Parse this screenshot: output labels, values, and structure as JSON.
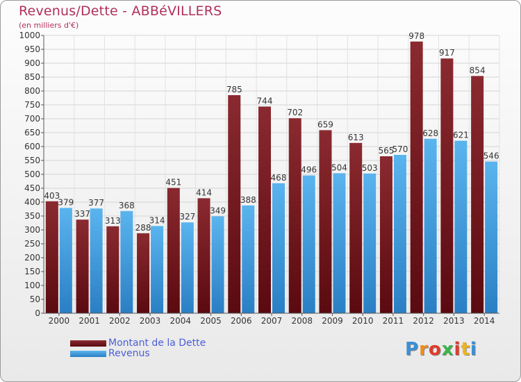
{
  "title": "Revenus/Dette - ABBéVILLERS",
  "subtitle": "(en milliers d'€)",
  "legend": {
    "items": [
      {
        "label": "Montant de la Dette",
        "color": "#7a1c22"
      },
      {
        "label": "Revenus",
        "color": "#3a9de0"
      }
    ]
  },
  "logo": {
    "text": "Proxiti"
  },
  "chart_data": {
    "type": "bar",
    "title": "Revenus/Dette - ABBéVILLERS",
    "ylabel": "(en milliers d'€)",
    "xlabel": "",
    "ylim": [
      0,
      1000
    ],
    "ytick_step": 50,
    "grid": true,
    "legend_position": "bottom-left",
    "categories": [
      "2000",
      "2001",
      "2002",
      "2003",
      "2004",
      "2005",
      "2006",
      "2007",
      "2008",
      "2009",
      "2010",
      "2011",
      "2012",
      "2013",
      "2014"
    ],
    "series": [
      {
        "name": "Montant de la Dette",
        "color": "#7a1c22",
        "values": [
          403,
          337,
          313,
          288,
          451,
          414,
          785,
          744,
          702,
          659,
          613,
          565,
          978,
          917,
          854
        ]
      },
      {
        "name": "Revenus",
        "color": "#3a9de0",
        "values": [
          379,
          377,
          368,
          314,
          327,
          349,
          388,
          468,
          496,
          504,
          503,
          570,
          628,
          621,
          546
        ]
      }
    ]
  }
}
